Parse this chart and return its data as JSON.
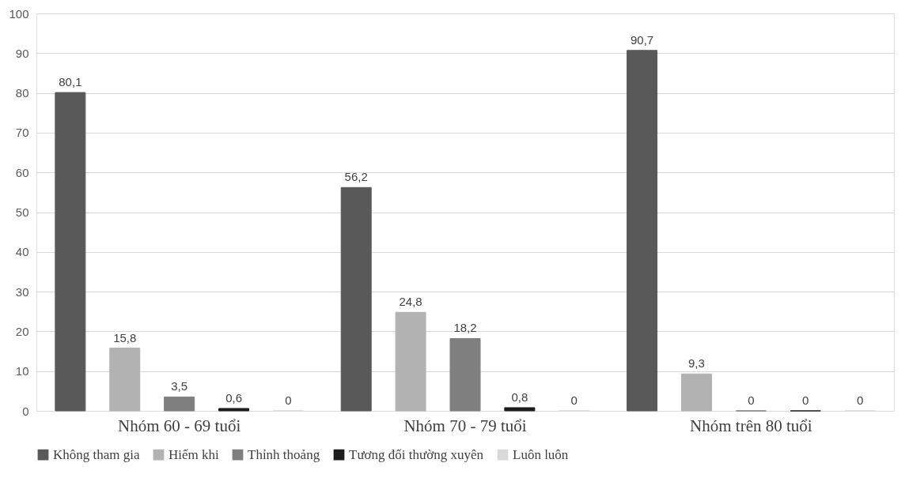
{
  "chart_data": {
    "type": "bar",
    "categories": [
      "Nhóm 60 - 69 tuổi",
      "Nhóm 70 - 79 tuổi",
      "Nhóm trên 80 tuổi"
    ],
    "series": [
      {
        "name": "Không tham gia",
        "color": "#595959",
        "values": [
          80.1,
          56.2,
          90.7
        ],
        "value_labels": [
          "80,1",
          "56,2",
          "90,7"
        ]
      },
      {
        "name": "Hiếm khi",
        "color": "#b2b2b2",
        "values": [
          15.8,
          24.8,
          9.3
        ],
        "value_labels": [
          "15,8",
          "24,8",
          "9,3"
        ]
      },
      {
        "name": "Thỉnh thoảng",
        "color": "#7f7f7f",
        "values": [
          3.5,
          18.2,
          0
        ],
        "value_labels": [
          "3,5",
          "18,2",
          "0"
        ]
      },
      {
        "name": "Tương đối thường xuyên",
        "color": "#1c1c1c",
        "values": [
          0.6,
          0.8,
          0
        ],
        "value_labels": [
          "0,6",
          "0,8",
          "0"
        ]
      },
      {
        "name": "Luôn luôn",
        "color": "#d9d9d9",
        "values": [
          0,
          0,
          0
        ],
        "value_labels": [
          "0",
          "0",
          "0"
        ]
      }
    ],
    "ylim": [
      0,
      100
    ],
    "yticks": [
      0,
      10,
      20,
      30,
      40,
      50,
      60,
      70,
      80,
      90,
      100
    ],
    "grid": "y",
    "legend": "bottom"
  }
}
